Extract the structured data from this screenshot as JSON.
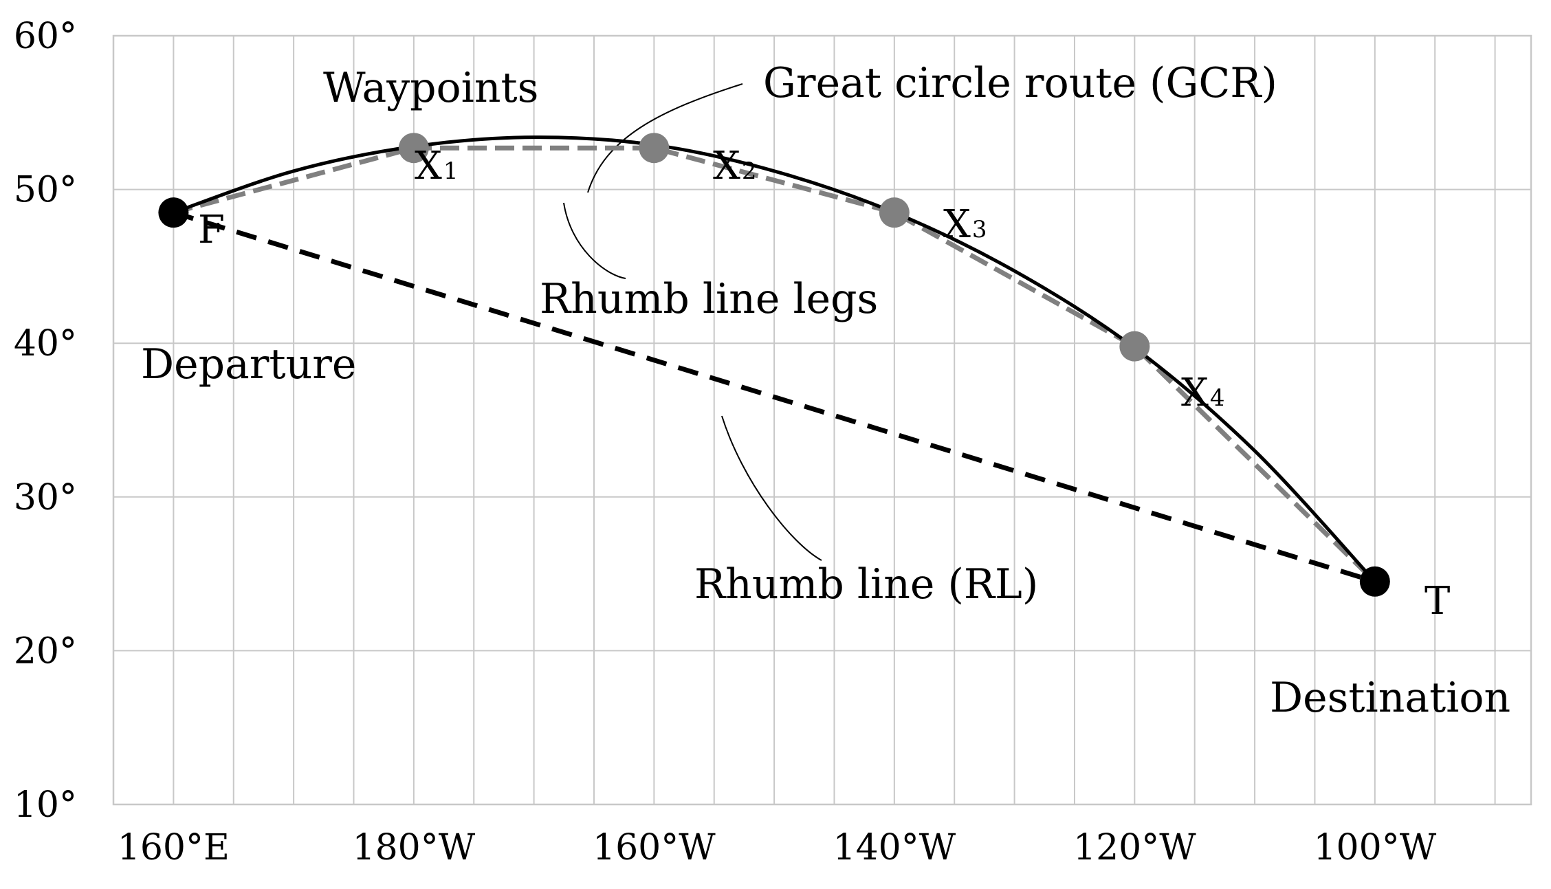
{
  "chart_data": {
    "type": "line",
    "title": "",
    "xlabel": "",
    "ylabel": "",
    "x_domain": [
      -5,
      113
    ],
    "y_domain": [
      10,
      60
    ],
    "x_ticks": [
      {
        "value": 0,
        "label": "160°E"
      },
      {
        "value": 20,
        "label": "180°W"
      },
      {
        "value": 40,
        "label": "160°W"
      },
      {
        "value": 60,
        "label": "140°W"
      },
      {
        "value": 80,
        "label": "120°W"
      },
      {
        "value": 100,
        "label": "100°W"
      }
    ],
    "y_ticks": [
      {
        "value": 10,
        "label": "10°"
      },
      {
        "value": 20,
        "label": "20°"
      },
      {
        "value": 30,
        "label": "30°"
      },
      {
        "value": 40,
        "label": "40°"
      },
      {
        "value": 50,
        "label": "50°"
      },
      {
        "value": 60,
        "label": "60°"
      }
    ],
    "grid": true,
    "series": [
      {
        "name": "Great circle route (GCR)",
        "style": "solid",
        "color": "#000000",
        "points": [
          [
            0,
            48.5
          ],
          [
            10,
            51.2
          ],
          [
            20,
            52.8
          ],
          [
            30,
            53.4
          ],
          [
            40,
            52.9
          ],
          [
            50,
            51.2
          ],
          [
            60,
            48.5
          ],
          [
            70,
            44.7
          ],
          [
            80,
            39.7
          ],
          [
            90,
            33.0
          ],
          [
            100,
            24.5
          ]
        ]
      },
      {
        "name": "Rhumb line legs",
        "style": "dashed",
        "color": "#808080",
        "points": [
          [
            0,
            48.5
          ],
          [
            20,
            52.7
          ],
          [
            40,
            52.7
          ],
          [
            60,
            48.5
          ],
          [
            80,
            39.8
          ],
          [
            100,
            24.5
          ]
        ]
      },
      {
        "name": "Rhumb line (RL)",
        "style": "dashed",
        "color": "#000000",
        "points": [
          [
            0,
            48.5
          ],
          [
            100,
            24.5
          ]
        ]
      }
    ],
    "points": [
      {
        "id": "F",
        "x": 0,
        "y": 48.5,
        "color": "#000000"
      },
      {
        "id": "X1",
        "x": 20,
        "y": 52.7,
        "color": "#808080"
      },
      {
        "id": "X2",
        "x": 40,
        "y": 52.7,
        "color": "#808080"
      },
      {
        "id": "X3",
        "x": 60,
        "y": 48.5,
        "color": "#808080"
      },
      {
        "id": "X4",
        "x": 80,
        "y": 39.8,
        "color": "#808080"
      },
      {
        "id": "T",
        "x": 100,
        "y": 24.5,
        "color": "#000000"
      }
    ],
    "labels": {
      "F": "F",
      "T": "T",
      "X1": {
        "base": "X",
        "sub": "1"
      },
      "X2": {
        "base": "X",
        "sub": "2"
      },
      "X3": {
        "base": "X",
        "sub": "3"
      },
      "X4": {
        "base": "X",
        "sub": "4"
      },
      "departure": "Departure",
      "destination": "Destination",
      "waypoints": "Waypoints",
      "gcr": "Great circle route (GCR)",
      "legs": "Rhumb line legs",
      "rl": "Rhumb line (RL)"
    },
    "colors": {
      "grid": "#c8c8c8",
      "gcr": "#000000",
      "legs": "#808080",
      "rl": "#000000"
    }
  }
}
